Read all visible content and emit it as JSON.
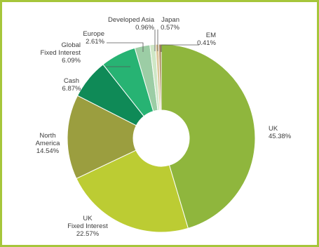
{
  "chart_data": {
    "type": "pie",
    "donut": true,
    "slices": [
      {
        "label": [
          "UK"
        ],
        "value": 45.38,
        "value_text": "45.38%",
        "color": "#8fb63d"
      },
      {
        "label": [
          "UK",
          "Fixed Interest"
        ],
        "value": 22.57,
        "value_text": "22.57%",
        "color": "#bccc33"
      },
      {
        "label": [
          "North",
          "America"
        ],
        "value": 14.54,
        "value_text": "14.54%",
        "color": "#9b9e3f"
      },
      {
        "label": [
          "Cash"
        ],
        "value": 6.87,
        "value_text": "6.87%",
        "color": "#0f8a57"
      },
      {
        "label": [
          "Global",
          "Fixed Interest"
        ],
        "value": 6.09,
        "value_text": "6.09%",
        "color": "#27b373"
      },
      {
        "label": [
          "Europe"
        ],
        "value": 2.61,
        "value_text": "2.61%",
        "color": "#9ccda5"
      },
      {
        "label": [
          "Developed Asia"
        ],
        "value": 0.96,
        "value_text": "0.96%",
        "color": "#cfe7c6"
      },
      {
        "label": [
          "Japan"
        ],
        "value": 0.57,
        "value_text": "0.57%",
        "color": "#dcc79a"
      },
      {
        "label": [
          "EM"
        ],
        "value": 0.41,
        "value_text": "0.41%",
        "color": "#a77f55"
      }
    ]
  }
}
